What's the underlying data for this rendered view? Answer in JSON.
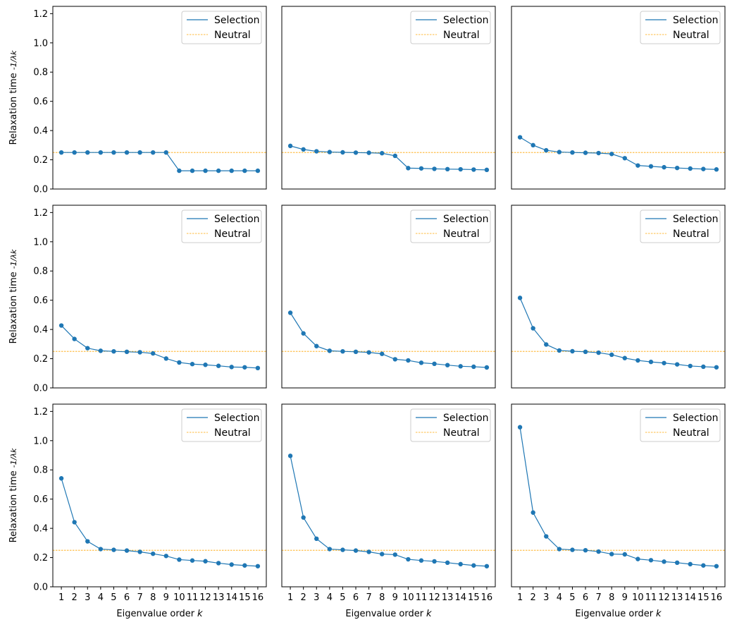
{
  "figure": {
    "colors": {
      "selection": "#1f77b4",
      "neutral": "#ffa500",
      "axis": "#000000",
      "legend_border": "#cccccc"
    }
  },
  "chart_data": [
    {
      "type": "line",
      "xlabel": "",
      "ylabel": "Relaxation time",
      "ylabel_math": "-1/λk",
      "ylim": [
        0,
        1.25
      ],
      "yticks": [
        "0.0",
        "0.2",
        "0.4",
        "0.6",
        "0.8",
        "1.0",
        "1.2"
      ],
      "x": [
        1,
        2,
        3,
        4,
        5,
        6,
        7,
        8,
        9,
        10,
        11,
        12,
        13,
        14,
        15,
        16
      ],
      "show_xticks": false,
      "show_yticks": true,
      "legend": "top-right",
      "series": [
        {
          "name": "Selection",
          "values": [
            0.25,
            0.25,
            0.25,
            0.25,
            0.25,
            0.25,
            0.25,
            0.25,
            0.25,
            0.125,
            0.125,
            0.125,
            0.125,
            0.125,
            0.125,
            0.125
          ]
        },
        {
          "name": "Neutral",
          "constant": 0.25
        }
      ]
    },
    {
      "type": "line",
      "xlabel": "",
      "ylabel": "",
      "ylim": [
        0,
        1.25
      ],
      "x": [
        1,
        2,
        3,
        4,
        5,
        6,
        7,
        8,
        9,
        10,
        11,
        12,
        13,
        14,
        15,
        16
      ],
      "show_xticks": false,
      "show_yticks": false,
      "legend": "top-right",
      "series": [
        {
          "name": "Selection",
          "values": [
            0.295,
            0.271,
            0.258,
            0.253,
            0.251,
            0.249,
            0.248,
            0.245,
            0.227,
            0.143,
            0.141,
            0.138,
            0.136,
            0.135,
            0.133,
            0.131
          ]
        },
        {
          "name": "Neutral",
          "constant": 0.25
        }
      ]
    },
    {
      "type": "line",
      "xlabel": "",
      "ylabel": "",
      "ylim": [
        0,
        1.25
      ],
      "x": [
        1,
        2,
        3,
        4,
        5,
        6,
        7,
        8,
        9,
        10,
        11,
        12,
        13,
        14,
        15,
        16
      ],
      "show_xticks": false,
      "show_yticks": false,
      "legend": "top-right",
      "series": [
        {
          "name": "Selection",
          "values": [
            0.354,
            0.3,
            0.265,
            0.253,
            0.25,
            0.248,
            0.246,
            0.24,
            0.211,
            0.161,
            0.155,
            0.149,
            0.144,
            0.14,
            0.137,
            0.134
          ]
        },
        {
          "name": "Neutral",
          "constant": 0.25
        }
      ]
    },
    {
      "type": "line",
      "xlabel": "",
      "ylabel": "Relaxation time",
      "ylabel_math": "-1/λk",
      "ylim": [
        0,
        1.25
      ],
      "yticks": [
        "0.0",
        "0.2",
        "0.4",
        "0.6",
        "0.8",
        "1.0",
        "1.2"
      ],
      "x": [
        1,
        2,
        3,
        4,
        5,
        6,
        7,
        8,
        9,
        10,
        11,
        12,
        13,
        14,
        15,
        16
      ],
      "show_xticks": false,
      "show_yticks": true,
      "legend": "top-right",
      "series": [
        {
          "name": "Selection",
          "values": [
            0.427,
            0.335,
            0.272,
            0.254,
            0.25,
            0.247,
            0.244,
            0.236,
            0.201,
            0.174,
            0.163,
            0.158,
            0.151,
            0.143,
            0.141,
            0.136
          ]
        },
        {
          "name": "Neutral",
          "constant": 0.25
        }
      ]
    },
    {
      "type": "line",
      "xlabel": "",
      "ylabel": "",
      "ylim": [
        0,
        1.25
      ],
      "x": [
        1,
        2,
        3,
        4,
        5,
        6,
        7,
        8,
        9,
        10,
        11,
        12,
        13,
        14,
        15,
        16
      ],
      "show_xticks": false,
      "show_yticks": false,
      "legend": "top-right",
      "series": [
        {
          "name": "Selection",
          "values": [
            0.514,
            0.373,
            0.286,
            0.254,
            0.25,
            0.247,
            0.243,
            0.233,
            0.196,
            0.188,
            0.172,
            0.165,
            0.156,
            0.148,
            0.145,
            0.14
          ]
        },
        {
          "name": "Neutral",
          "constant": 0.25
        }
      ]
    },
    {
      "type": "line",
      "xlabel": "",
      "ylabel": "",
      "ylim": [
        0,
        1.25
      ],
      "x": [
        1,
        2,
        3,
        4,
        5,
        6,
        7,
        8,
        9,
        10,
        11,
        12,
        13,
        14,
        15,
        16
      ],
      "show_xticks": false,
      "show_yticks": false,
      "legend": "top-right",
      "series": [
        {
          "name": "Selection",
          "values": [
            0.616,
            0.408,
            0.297,
            0.256,
            0.251,
            0.247,
            0.241,
            0.227,
            0.204,
            0.188,
            0.178,
            0.17,
            0.161,
            0.15,
            0.145,
            0.141
          ]
        },
        {
          "name": "Neutral",
          "constant": 0.25
        }
      ]
    },
    {
      "type": "line",
      "xlabel": "Eigenvalue order",
      "xlabel_math": "k",
      "ylabel": "Relaxation time",
      "ylabel_math": "-1/λk",
      "ylim": [
        0,
        1.25
      ],
      "yticks": [
        "0.0",
        "0.2",
        "0.4",
        "0.6",
        "0.8",
        "1.0",
        "1.2"
      ],
      "x": [
        1,
        2,
        3,
        4,
        5,
        6,
        7,
        8,
        9,
        10,
        11,
        12,
        13,
        14,
        15,
        16
      ],
      "xticks": [
        "1",
        "2",
        "3",
        "4",
        "5",
        "6",
        "7",
        "8",
        "9",
        "10",
        "11",
        "12",
        "13",
        "14",
        "15",
        "16"
      ],
      "show_xticks": true,
      "show_yticks": true,
      "legend": "top-right",
      "series": [
        {
          "name": "Selection",
          "values": [
            0.742,
            0.442,
            0.311,
            0.258,
            0.253,
            0.248,
            0.239,
            0.226,
            0.211,
            0.186,
            0.18,
            0.175,
            0.162,
            0.152,
            0.146,
            0.141
          ]
        },
        {
          "name": "Neutral",
          "constant": 0.25
        }
      ]
    },
    {
      "type": "line",
      "xlabel": "Eigenvalue order",
      "xlabel_math": "k",
      "ylabel": "",
      "ylim": [
        0,
        1.25
      ],
      "x": [
        1,
        2,
        3,
        4,
        5,
        6,
        7,
        8,
        9,
        10,
        11,
        12,
        13,
        14,
        15,
        16
      ],
      "xticks": [
        "1",
        "2",
        "3",
        "4",
        "5",
        "6",
        "7",
        "8",
        "9",
        "10",
        "11",
        "12",
        "13",
        "14",
        "15",
        "16"
      ],
      "show_xticks": true,
      "show_yticks": false,
      "legend": "top-right",
      "series": [
        {
          "name": "Selection",
          "values": [
            0.896,
            0.474,
            0.329,
            0.258,
            0.253,
            0.248,
            0.239,
            0.224,
            0.22,
            0.188,
            0.18,
            0.174,
            0.165,
            0.155,
            0.146,
            0.141
          ]
        },
        {
          "name": "Neutral",
          "constant": 0.25
        }
      ]
    },
    {
      "type": "line",
      "xlabel": "Eigenvalue order",
      "xlabel_math": "k",
      "ylabel": "",
      "ylim": [
        0,
        1.25
      ],
      "x": [
        1,
        2,
        3,
        4,
        5,
        6,
        7,
        8,
        9,
        10,
        11,
        12,
        13,
        14,
        15,
        16
      ],
      "xticks": [
        "1",
        "2",
        "3",
        "4",
        "5",
        "6",
        "7",
        "8",
        "9",
        "10",
        "11",
        "12",
        "13",
        "14",
        "15",
        "16"
      ],
      "show_xticks": true,
      "show_yticks": false,
      "legend": "top-right",
      "series": [
        {
          "name": "Selection",
          "values": [
            1.092,
            0.508,
            0.345,
            0.258,
            0.253,
            0.25,
            0.241,
            0.224,
            0.222,
            0.19,
            0.182,
            0.172,
            0.165,
            0.155,
            0.146,
            0.141
          ]
        },
        {
          "name": "Neutral",
          "constant": 0.25
        }
      ]
    }
  ]
}
